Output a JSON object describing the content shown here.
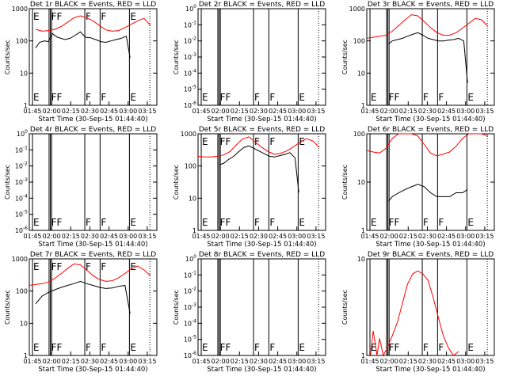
{
  "time_ticks": [
    "01:45",
    "02:00",
    "02:15",
    "02:30",
    "02:45",
    "03:00",
    "03:15"
  ],
  "xlabel": "Start Time (30-Sep-15 01:44:40)",
  "ylabel": "Counts/sec",
  "colors": {
    "events": "#000000",
    "lld": "#ff0000"
  },
  "chart_data": [
    {
      "type": "line",
      "title": "Det 1r  BLACK = Events, RED = LLD",
      "y_scale": "log",
      "ylim": [
        1,
        1000
      ],
      "ytick_labels": [
        "1",
        "10",
        "100",
        "1000"
      ],
      "x_range_minutes_from_start": [
        0,
        100
      ],
      "event_markers": [
        {
          "label": "E",
          "t": 2.5,
          "lines": [
            2.5
          ]
        },
        {
          "label": "FF",
          "t": 16.5,
          "lines": [
            15.5,
            16.5,
            17.5
          ]
        },
        {
          "label": "F",
          "t": 43.5,
          "lines": [
            43.5
          ]
        },
        {
          "label": "F",
          "t": 55.5,
          "lines": [
            55.5
          ]
        },
        {
          "label": "E",
          "t": 78.5,
          "lines": [
            78.5
          ]
        }
      ],
      "series": [
        {
          "name": "Events",
          "color": "black",
          "x": [
            5,
            8,
            12,
            15,
            18,
            22,
            28,
            32,
            36,
            40,
            44,
            48,
            52,
            56,
            60,
            64,
            68,
            72,
            76,
            79
          ],
          "y": [
            60,
            90,
            100,
            95,
            170,
            130,
            110,
            120,
            150,
            190,
            130,
            125,
            110,
            95,
            90,
            100,
            110,
            120,
            140,
            30
          ]
        },
        {
          "name": "LLD",
          "color": "red",
          "x": [
            5,
            10,
            15,
            20,
            25,
            30,
            35,
            40,
            45,
            50,
            55,
            60,
            65,
            70,
            75,
            80,
            85,
            90,
            95
          ],
          "y": [
            230,
            200,
            210,
            230,
            280,
            380,
            520,
            600,
            520,
            420,
            300,
            220,
            200,
            210,
            260,
            330,
            420,
            500,
            300
          ]
        }
      ]
    },
    {
      "type": "line",
      "title": "Det 2r  BLACK = Events, RED = LLD",
      "y_scale": "log",
      "ylim": [
        1,
        1e-06
      ],
      "ytick_labels": [
        "10^-6",
        "10^-5",
        "10^-4",
        "10^-3",
        "10^-2",
        "10^-1",
        "10^0"
      ],
      "x_range_minutes_from_start": [
        0,
        100
      ],
      "event_markers": [
        {
          "label": "E",
          "t": 2.5,
          "lines": [
            2.5
          ]
        },
        {
          "label": "FF",
          "t": 16.5,
          "lines": [
            15.5,
            16.5,
            17.5
          ]
        },
        {
          "label": "F",
          "t": 43.5,
          "lines": [
            43.5
          ]
        },
        {
          "label": "F",
          "t": 55.5,
          "lines": [
            55.5
          ]
        },
        {
          "label": "E",
          "t": 78.5,
          "lines": [
            78.5
          ]
        }
      ],
      "series": []
    },
    {
      "type": "line",
      "title": "Det 3r  BLACK = Events, RED = LLD",
      "y_scale": "log",
      "ylim": [
        1,
        1000
      ],
      "ytick_labels": [
        "1",
        "10",
        "100",
        "1000"
      ],
      "x_range_minutes_from_start": [
        0,
        100
      ],
      "event_markers": [
        {
          "label": "E",
          "t": 2.5,
          "lines": [
            2.5
          ]
        },
        {
          "label": "FF",
          "t": 16.5,
          "lines": [
            15.5,
            16.5,
            17.5
          ]
        },
        {
          "label": "F",
          "t": 43.5,
          "lines": [
            43.5
          ]
        },
        {
          "label": "F",
          "t": 55.5,
          "lines": [
            55.5
          ]
        },
        {
          "label": "E",
          "t": 78.5,
          "lines": [
            78.5
          ]
        }
      ],
      "series": [
        {
          "name": "Events",
          "color": "black",
          "x": [
            17,
            20,
            24,
            28,
            32,
            36,
            40,
            44,
            48,
            52,
            56,
            60,
            64,
            68,
            72,
            76,
            79
          ],
          "y": [
            80,
            100,
            110,
            120,
            140,
            160,
            180,
            150,
            120,
            110,
            100,
            100,
            105,
            110,
            120,
            100,
            5
          ]
        },
        {
          "name": "LLD",
          "color": "red",
          "x": [
            0,
            5,
            10,
            15,
            20,
            25,
            30,
            35,
            40,
            45,
            50,
            55,
            60,
            65,
            70,
            75,
            80,
            85,
            90,
            95
          ],
          "y": [
            120,
            130,
            140,
            150,
            200,
            300,
            450,
            650,
            600,
            400,
            260,
            180,
            150,
            150,
            180,
            250,
            350,
            500,
            450,
            280
          ]
        }
      ]
    },
    {
      "type": "line",
      "title": "Det 4r  BLACK = Events, RED = LLD",
      "y_scale": "log",
      "ylim": [
        1,
        1e-06
      ],
      "ytick_labels": [
        "10^-6",
        "10^-5",
        "10^-4",
        "10^-3",
        "10^-2",
        "10^-1",
        "10^0"
      ],
      "x_range_minutes_from_start": [
        0,
        100
      ],
      "event_markers": [
        {
          "label": "E",
          "t": 2.5,
          "lines": [
            2.5
          ]
        },
        {
          "label": "FF",
          "t": 16.5,
          "lines": [
            15.5,
            16.5,
            17.5
          ]
        },
        {
          "label": "F",
          "t": 43.5,
          "lines": [
            43.5
          ]
        },
        {
          "label": "F",
          "t": 55.5,
          "lines": [
            55.5
          ]
        },
        {
          "label": "E",
          "t": 78.5,
          "lines": [
            78.5
          ]
        }
      ],
      "series": []
    },
    {
      "type": "line",
      "title": "Det 5r  BLACK = Events, RED = LLD",
      "y_scale": "log",
      "ylim": [
        1,
        1000
      ],
      "ytick_labels": [
        "1",
        "10",
        "100",
        "1000"
      ],
      "x_range_minutes_from_start": [
        0,
        100
      ],
      "event_markers": [
        {
          "label": "E",
          "t": 2.5,
          "lines": [
            2.5
          ]
        },
        {
          "label": "FF",
          "t": 16.5,
          "lines": [
            15.5,
            16.5,
            17.5
          ]
        },
        {
          "label": "F",
          "t": 43.5,
          "lines": [
            43.5
          ]
        },
        {
          "label": "F",
          "t": 55.5,
          "lines": [
            55.5
          ]
        },
        {
          "label": "E",
          "t": 78.5,
          "lines": [
            78.5
          ]
        }
      ],
      "series": [
        {
          "name": "Events",
          "color": "black",
          "x": [
            17,
            20,
            24,
            28,
            32,
            36,
            40,
            44,
            48,
            52,
            56,
            60,
            64,
            68,
            72,
            76,
            79
          ],
          "y": [
            110,
            120,
            160,
            200,
            280,
            380,
            420,
            350,
            290,
            240,
            200,
            190,
            210,
            230,
            260,
            180,
            15
          ]
        },
        {
          "name": "LLD",
          "color": "red",
          "x": [
            0,
            5,
            10,
            15,
            20,
            25,
            30,
            35,
            40,
            45,
            50,
            55,
            60,
            65,
            70,
            75,
            80,
            85,
            90,
            95
          ],
          "y": [
            200,
            190,
            190,
            200,
            220,
            280,
            450,
            700,
            800,
            550,
            380,
            280,
            230,
            250,
            300,
            400,
            550,
            700,
            600,
            380
          ]
        }
      ]
    },
    {
      "type": "line",
      "title": "Det 6r  BLACK = Events, RED = LLD",
      "y_scale": "log",
      "ylim": [
        1,
        100
      ],
      "ytick_labels": [
        "1",
        "10",
        "100"
      ],
      "x_range_minutes_from_start": [
        0,
        100
      ],
      "event_markers": [
        {
          "label": "E",
          "t": 2.5,
          "lines": [
            2.5
          ]
        },
        {
          "label": "FF",
          "t": 16.5,
          "lines": [
            15.5,
            16.5,
            17.5
          ]
        },
        {
          "label": "F",
          "t": 43.5,
          "lines": [
            43.5
          ]
        },
        {
          "label": "F",
          "t": 55.5,
          "lines": [
            55.5
          ]
        },
        {
          "label": "E",
          "t": 78.5,
          "lines": [
            78.5
          ]
        }
      ],
      "series": [
        {
          "name": "Events",
          "color": "black",
          "x": [
            17,
            20,
            25,
            30,
            35,
            40,
            45,
            50,
            55,
            60,
            65,
            70,
            75,
            79
          ],
          "y": [
            4,
            5,
            6,
            7,
            8,
            9,
            8,
            6,
            5,
            5,
            5,
            6,
            6,
            7
          ]
        },
        {
          "name": "LLD",
          "color": "red",
          "x": [
            0,
            5,
            10,
            15,
            20,
            25,
            30,
            35,
            40,
            45,
            50,
            55,
            60,
            65,
            70,
            75,
            80,
            85,
            90,
            95
          ],
          "y": [
            45,
            42,
            40,
            50,
            80,
            100,
            100,
            100,
            90,
            60,
            40,
            35,
            38,
            42,
            55,
            80,
            100,
            100,
            100,
            90
          ]
        }
      ]
    },
    {
      "type": "line",
      "title": "Det 7r  BLACK = Events, RED = LLD",
      "y_scale": "log",
      "ylim": [
        1,
        1000
      ],
      "ytick_labels": [
        "1",
        "10",
        "100",
        "1000"
      ],
      "x_range_minutes_from_start": [
        0,
        100
      ],
      "event_markers": [
        {
          "label": "E",
          "t": 2.5,
          "lines": [
            2.5
          ]
        },
        {
          "label": "FF",
          "t": 16.5,
          "lines": [
            15.5,
            16.5,
            17.5
          ]
        },
        {
          "label": "F",
          "t": 43.5,
          "lines": [
            43.5
          ]
        },
        {
          "label": "F",
          "t": 55.5,
          "lines": [
            55.5
          ]
        },
        {
          "label": "E",
          "t": 78.5,
          "lines": [
            78.5
          ]
        }
      ],
      "series": [
        {
          "name": "Events",
          "color": "black",
          "x": [
            5,
            10,
            15,
            20,
            25,
            30,
            35,
            40,
            45,
            50,
            55,
            60,
            65,
            70,
            75,
            79
          ],
          "y": [
            40,
            70,
            90,
            110,
            130,
            150,
            170,
            200,
            170,
            150,
            130,
            120,
            125,
            140,
            150,
            20
          ]
        },
        {
          "name": "LLD",
          "color": "red",
          "x": [
            0,
            5,
            10,
            15,
            20,
            25,
            30,
            35,
            40,
            45,
            50,
            55,
            60,
            65,
            70,
            75,
            80,
            85,
            90,
            95
          ],
          "y": [
            150,
            160,
            170,
            190,
            250,
            350,
            500,
            700,
            650,
            450,
            300,
            230,
            200,
            210,
            260,
            350,
            500,
            600,
            450,
            300
          ]
        }
      ]
    },
    {
      "type": "line",
      "title": "Det 8r  BLACK = Events, RED = LLD",
      "y_scale": "log",
      "ylim": [
        1,
        1e-06
      ],
      "ytick_labels": [
        "10^-6",
        "10^-5",
        "10^-4",
        "10^-3",
        "10^-2",
        "10^-1",
        "10^0"
      ],
      "x_range_minutes_from_start": [
        0,
        100
      ],
      "event_markers": [
        {
          "label": "E",
          "t": 2.5,
          "lines": [
            2.5
          ]
        },
        {
          "label": "FF",
          "t": 16.5,
          "lines": [
            15.5,
            16.5,
            17.5
          ]
        },
        {
          "label": "F",
          "t": 43.5,
          "lines": [
            43.5
          ]
        },
        {
          "label": "F",
          "t": 55.5,
          "lines": [
            55.5
          ]
        },
        {
          "label": "E",
          "t": 78.5,
          "lines": [
            78.5
          ]
        }
      ],
      "series": []
    },
    {
      "type": "line",
      "title": "Det 9r  BLACK = Events, RED = LLD",
      "y_scale": "log",
      "ylim": [
        1,
        10
      ],
      "ytick_labels": [
        "1",
        "10"
      ],
      "x_range_minutes_from_start": [
        0,
        100
      ],
      "event_markers": [
        {
          "label": "E",
          "t": 2.5,
          "lines": [
            2.5
          ]
        },
        {
          "label": "FF",
          "t": 16.5,
          "lines": [
            15.5,
            16.5,
            17.5
          ]
        },
        {
          "label": "F",
          "t": 43.5,
          "lines": [
            43.5
          ]
        },
        {
          "label": "F",
          "t": 55.5,
          "lines": [
            55.5
          ]
        },
        {
          "label": "E",
          "t": 78.5,
          "lines": [
            78.5
          ]
        }
      ],
      "series": [
        {
          "name": "LLD",
          "color": "red",
          "x": [
            3,
            5,
            8,
            10,
            13,
            16,
            20,
            24,
            28,
            32,
            36,
            40,
            44,
            48,
            52,
            56,
            60,
            64,
            68,
            72
          ],
          "y": [
            1,
            1.8,
            1,
            1.5,
            1,
            1.2,
            1.6,
            2.2,
            3.5,
            5.5,
            7,
            7.5,
            7,
            6,
            4,
            2.5,
            1.6,
            1.2,
            1,
            1.1
          ]
        }
      ]
    }
  ]
}
